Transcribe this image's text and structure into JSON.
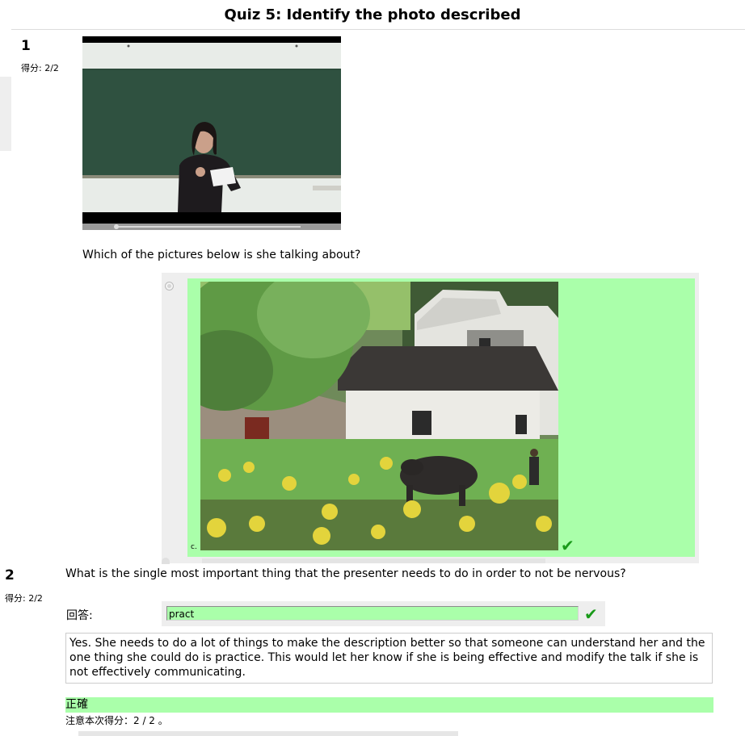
{
  "title": "Quiz 5: Identify the photo described",
  "questions": [
    {
      "number": "1",
      "score": "得分: 2/2",
      "prompt": "Which of the pictures below is she talking about?",
      "media": "video-player",
      "option_letter": "c.",
      "option_icon": "correct-check-icon"
    },
    {
      "number": "2",
      "score": "得分: 2/2",
      "prompt": "What is the single most important thing that the presenter needs to do in order to not be nervous?",
      "answer_label": "回答:",
      "answer_value": "pract",
      "feedback": "Yes. She needs to do a lot of things to make the description better so that someone can understand her and the one thing she could do is practice. This would let her know if she is being effective and modify the talk if she is not effectively communicating.",
      "correct_label": "正確",
      "score_note": "注意本次得分：2 / 2 。"
    }
  ],
  "colors": {
    "correct": "#aaffaa",
    "check": "#199a19",
    "panel": "#eeeeee"
  }
}
